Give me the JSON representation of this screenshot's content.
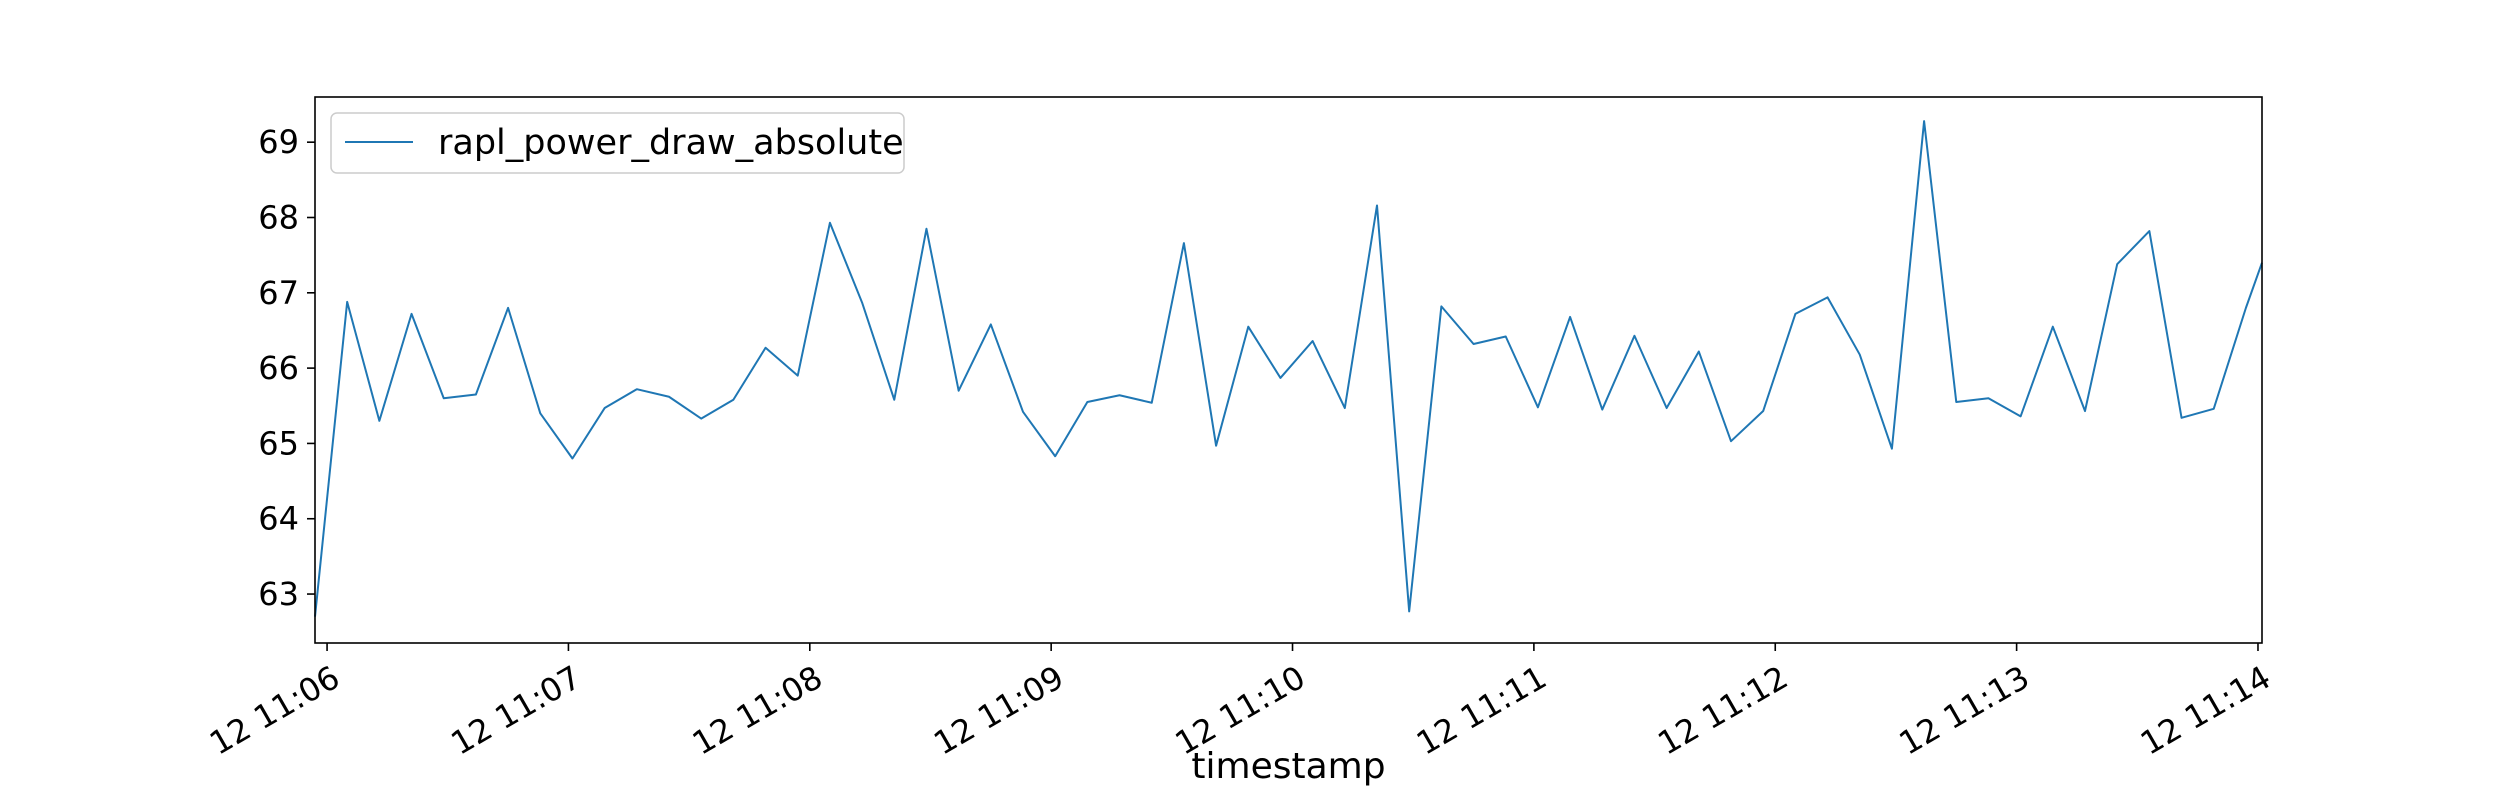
{
  "chart_data": {
    "type": "line",
    "title": "",
    "xlabel": "timestamp",
    "ylabel": "",
    "x_tick_labels": [
      "12 11:06",
      "12 11:07",
      "12 11:08",
      "12 11:09",
      "12 11:10",
      "12 11:11",
      "12 11:12",
      "12 11:13",
      "12 11:14"
    ],
    "x_tick_values": [
      0,
      60,
      120,
      180,
      240,
      300,
      360,
      420,
      480
    ],
    "x_unit_note": "",
    "xlim": [
      -3,
      481
    ],
    "y_ticks": [
      63,
      64,
      65,
      66,
      67,
      68,
      69
    ],
    "ylim": [
      62.35,
      69.6
    ],
    "grid": false,
    "legend_position": "top-left",
    "color": "#1f77b4",
    "series": [
      {
        "name": "rapl_power_draw_absolute",
        "x": [
          -3,
          5,
          13,
          21,
          29,
          37,
          45,
          53,
          61,
          69,
          77,
          85,
          93,
          101,
          109,
          117,
          125,
          133,
          141,
          149,
          157,
          165,
          173,
          181,
          189,
          197,
          205,
          213,
          221,
          229,
          237,
          245,
          253,
          261,
          269,
          277,
          285,
          293,
          301,
          309,
          317,
          325,
          333,
          341,
          349,
          357,
          365,
          373,
          381,
          389,
          397,
          405,
          413,
          421,
          429,
          437,
          445,
          453,
          461,
          469,
          477,
          481
        ],
        "values": [
          62.7,
          66.88,
          65.3,
          66.72,
          65.6,
          65.65,
          66.8,
          65.4,
          64.8,
          65.47,
          65.72,
          65.62,
          65.33,
          65.58,
          66.27,
          65.9,
          67.93,
          66.87,
          65.58,
          67.85,
          65.7,
          66.58,
          65.42,
          64.83,
          65.55,
          65.64,
          65.54,
          67.66,
          64.97,
          66.55,
          65.87,
          66.36,
          65.47,
          68.16,
          62.77,
          66.82,
          66.32,
          66.42,
          65.48,
          66.68,
          65.45,
          66.43,
          65.47,
          66.22,
          65.03,
          65.43,
          66.72,
          66.94,
          66.18,
          64.93,
          69.28,
          65.55,
          65.6,
          65.36,
          66.55,
          65.43,
          67.38,
          67.82,
          65.34,
          65.46,
          66.8,
          67.4
        ]
      }
    ]
  }
}
